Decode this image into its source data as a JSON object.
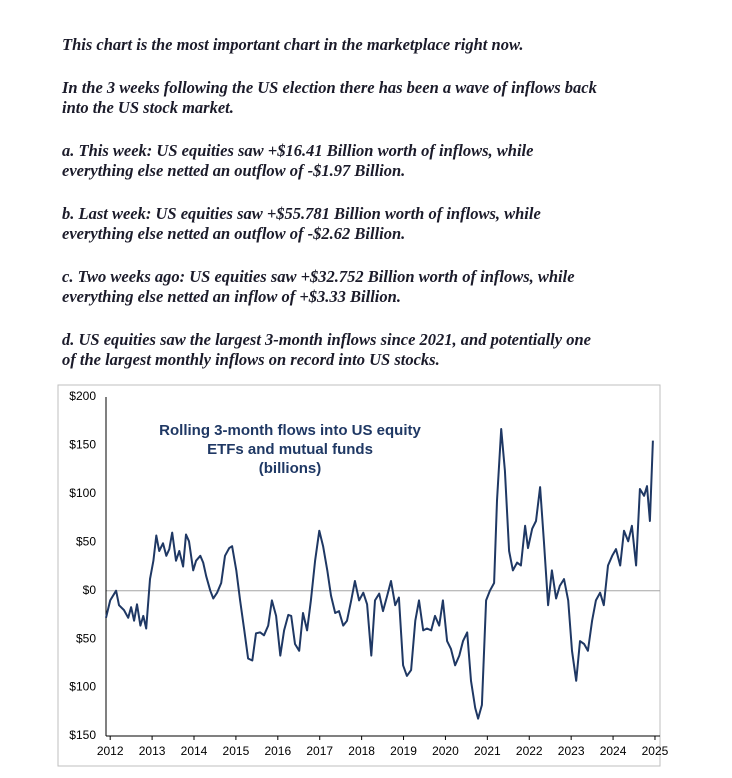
{
  "paragraphs": [
    {
      "lines": [
        "This chart is the most important chart in the marketplace right now."
      ]
    },
    {
      "lines": [
        "In the 3 weeks following the US election there has been a wave of inflows back",
        "into the US stock market."
      ]
    },
    {
      "lines": [
        "a. This week: US equities saw +$16.41 Billion worth of inflows, while",
        "everything else netted an outflow of -$1.97 Billion."
      ]
    },
    {
      "lines": [
        "b. Last week: US equities saw +$55.781 Billion worth of inflows, while",
        "everything else netted an outflow of -$2.62 Billion."
      ]
    },
    {
      "lines": [
        "c. Two weeks ago: US equities saw +$32.752 Billion worth of inflows, while",
        "everything else netted an inflow of +$3.33 Billion."
      ]
    },
    {
      "lines": [
        "d. US equities saw the largest 3-month inflows since 2021, and potentially one",
        "of the largest monthly inflows on record into US stocks."
      ]
    }
  ],
  "chart_data": {
    "type": "line",
    "annotation": [
      "Rolling 3-month flows into US equity",
      "ETFs and mutual funds",
      "(billions)"
    ],
    "x": [
      2011.9,
      2012.0,
      2012.14,
      2012.21,
      2012.33,
      2012.43,
      2012.5,
      2012.57,
      2012.64,
      2012.72,
      2012.79,
      2012.86,
      2012.95,
      2013.03,
      2013.1,
      2013.17,
      2013.26,
      2013.34,
      2013.41,
      2013.48,
      2013.57,
      2013.65,
      2013.74,
      2013.81,
      2013.88,
      2013.98,
      2014.05,
      2014.15,
      2014.22,
      2014.29,
      2014.39,
      2014.46,
      2014.55,
      2014.65,
      2014.74,
      2014.84,
      2014.91,
      2015.01,
      2015.1,
      2015.2,
      2015.29,
      2015.39,
      2015.48,
      2015.58,
      2015.67,
      2015.77,
      2015.86,
      2015.96,
      2016.06,
      2016.15,
      2016.25,
      2016.32,
      2016.41,
      2016.51,
      2016.6,
      2016.7,
      2016.79,
      2016.89,
      2016.99,
      2017.08,
      2017.18,
      2017.27,
      2017.37,
      2017.46,
      2017.56,
      2017.65,
      2017.75,
      2017.84,
      2017.94,
      2018.04,
      2018.13,
      2018.23,
      2018.32,
      2018.42,
      2018.51,
      2018.61,
      2018.7,
      2018.8,
      2018.89,
      2018.99,
      2019.08,
      2019.18,
      2019.28,
      2019.37,
      2019.47,
      2019.56,
      2019.66,
      2019.75,
      2019.85,
      2019.94,
      2020.04,
      2020.13,
      2020.23,
      2020.33,
      2020.42,
      2020.52,
      2020.61,
      2020.71,
      2020.78,
      2020.87,
      2020.97,
      2021.06,
      2021.16,
      2021.23,
      2021.33,
      2021.42,
      2021.52,
      2021.61,
      2021.71,
      2021.8,
      2021.9,
      2021.97,
      2022.07,
      2022.16,
      2022.26,
      2022.35,
      2022.45,
      2022.54,
      2022.64,
      2022.73,
      2022.83,
      2022.93,
      2023.02,
      2023.12,
      2023.21,
      2023.31,
      2023.4,
      2023.5,
      2023.59,
      2023.69,
      2023.78,
      2023.88,
      2023.98,
      2024.07,
      2024.17,
      2024.26,
      2024.36,
      2024.45,
      2024.55,
      2024.64,
      2024.74,
      2024.81,
      2024.88,
      2024.95
    ],
    "values": [
      -28,
      -10,
      0,
      -15,
      -20,
      -28,
      -17,
      -31,
      -14,
      -36,
      -26,
      -39,
      12,
      31,
      57,
      41,
      49,
      36,
      43,
      60,
      31,
      41,
      25,
      58,
      51,
      21,
      31,
      36,
      29,
      15,
      0,
      -8,
      -2,
      8,
      36,
      44,
      46,
      21,
      -10,
      -41,
      -70,
      -72,
      -44,
      -43,
      -46,
      -36,
      -10,
      -26,
      -67,
      -41,
      -25,
      -26,
      -55,
      -62,
      -23,
      -41,
      -10,
      31,
      62,
      46,
      21,
      -5,
      -23,
      -21,
      -36,
      -31,
      -10,
      10,
      -10,
      -2,
      -14,
      -67,
      -10,
      -3,
      -21,
      -5,
      10,
      -15,
      -7,
      -77,
      -88,
      -82,
      -31,
      -10,
      -41,
      -39,
      -41,
      -26,
      -36,
      -10,
      -52,
      -60,
      -77,
      -67,
      -52,
      -43,
      -93,
      -121,
      -132,
      -118,
      -10,
      0,
      8,
      93,
      167,
      124,
      41,
      21,
      29,
      26,
      67,
      44,
      64,
      72,
      107,
      51,
      -15,
      21,
      -8,
      5,
      12,
      -10,
      -62,
      -93,
      -52,
      -55,
      -62,
      -31,
      -10,
      -2,
      -15,
      26,
      36,
      43,
      26,
      62,
      51,
      67,
      26,
      105,
      98,
      108,
      72,
      155
    ],
    "color": "#1f3864",
    "xlim": [
      2011.9,
      2025.12
    ],
    "ylim": [
      -150,
      200
    ],
    "xticks": [
      2012,
      2013,
      2014,
      2015,
      2016,
      2017,
      2018,
      2019,
      2020,
      2021,
      2022,
      2023,
      2024,
      2025
    ],
    "yticks": [
      {
        "value": 200,
        "label": "$200"
      },
      {
        "value": 150,
        "label": "$150"
      },
      {
        "value": 100,
        "label": "$100"
      },
      {
        "value": 50,
        "label": "$50"
      },
      {
        "value": 0,
        "label": "$0"
      },
      {
        "value": -50,
        "label": "$50"
      },
      {
        "value": -100,
        "label": "$100"
      },
      {
        "value": -150,
        "label": "$150"
      }
    ]
  }
}
